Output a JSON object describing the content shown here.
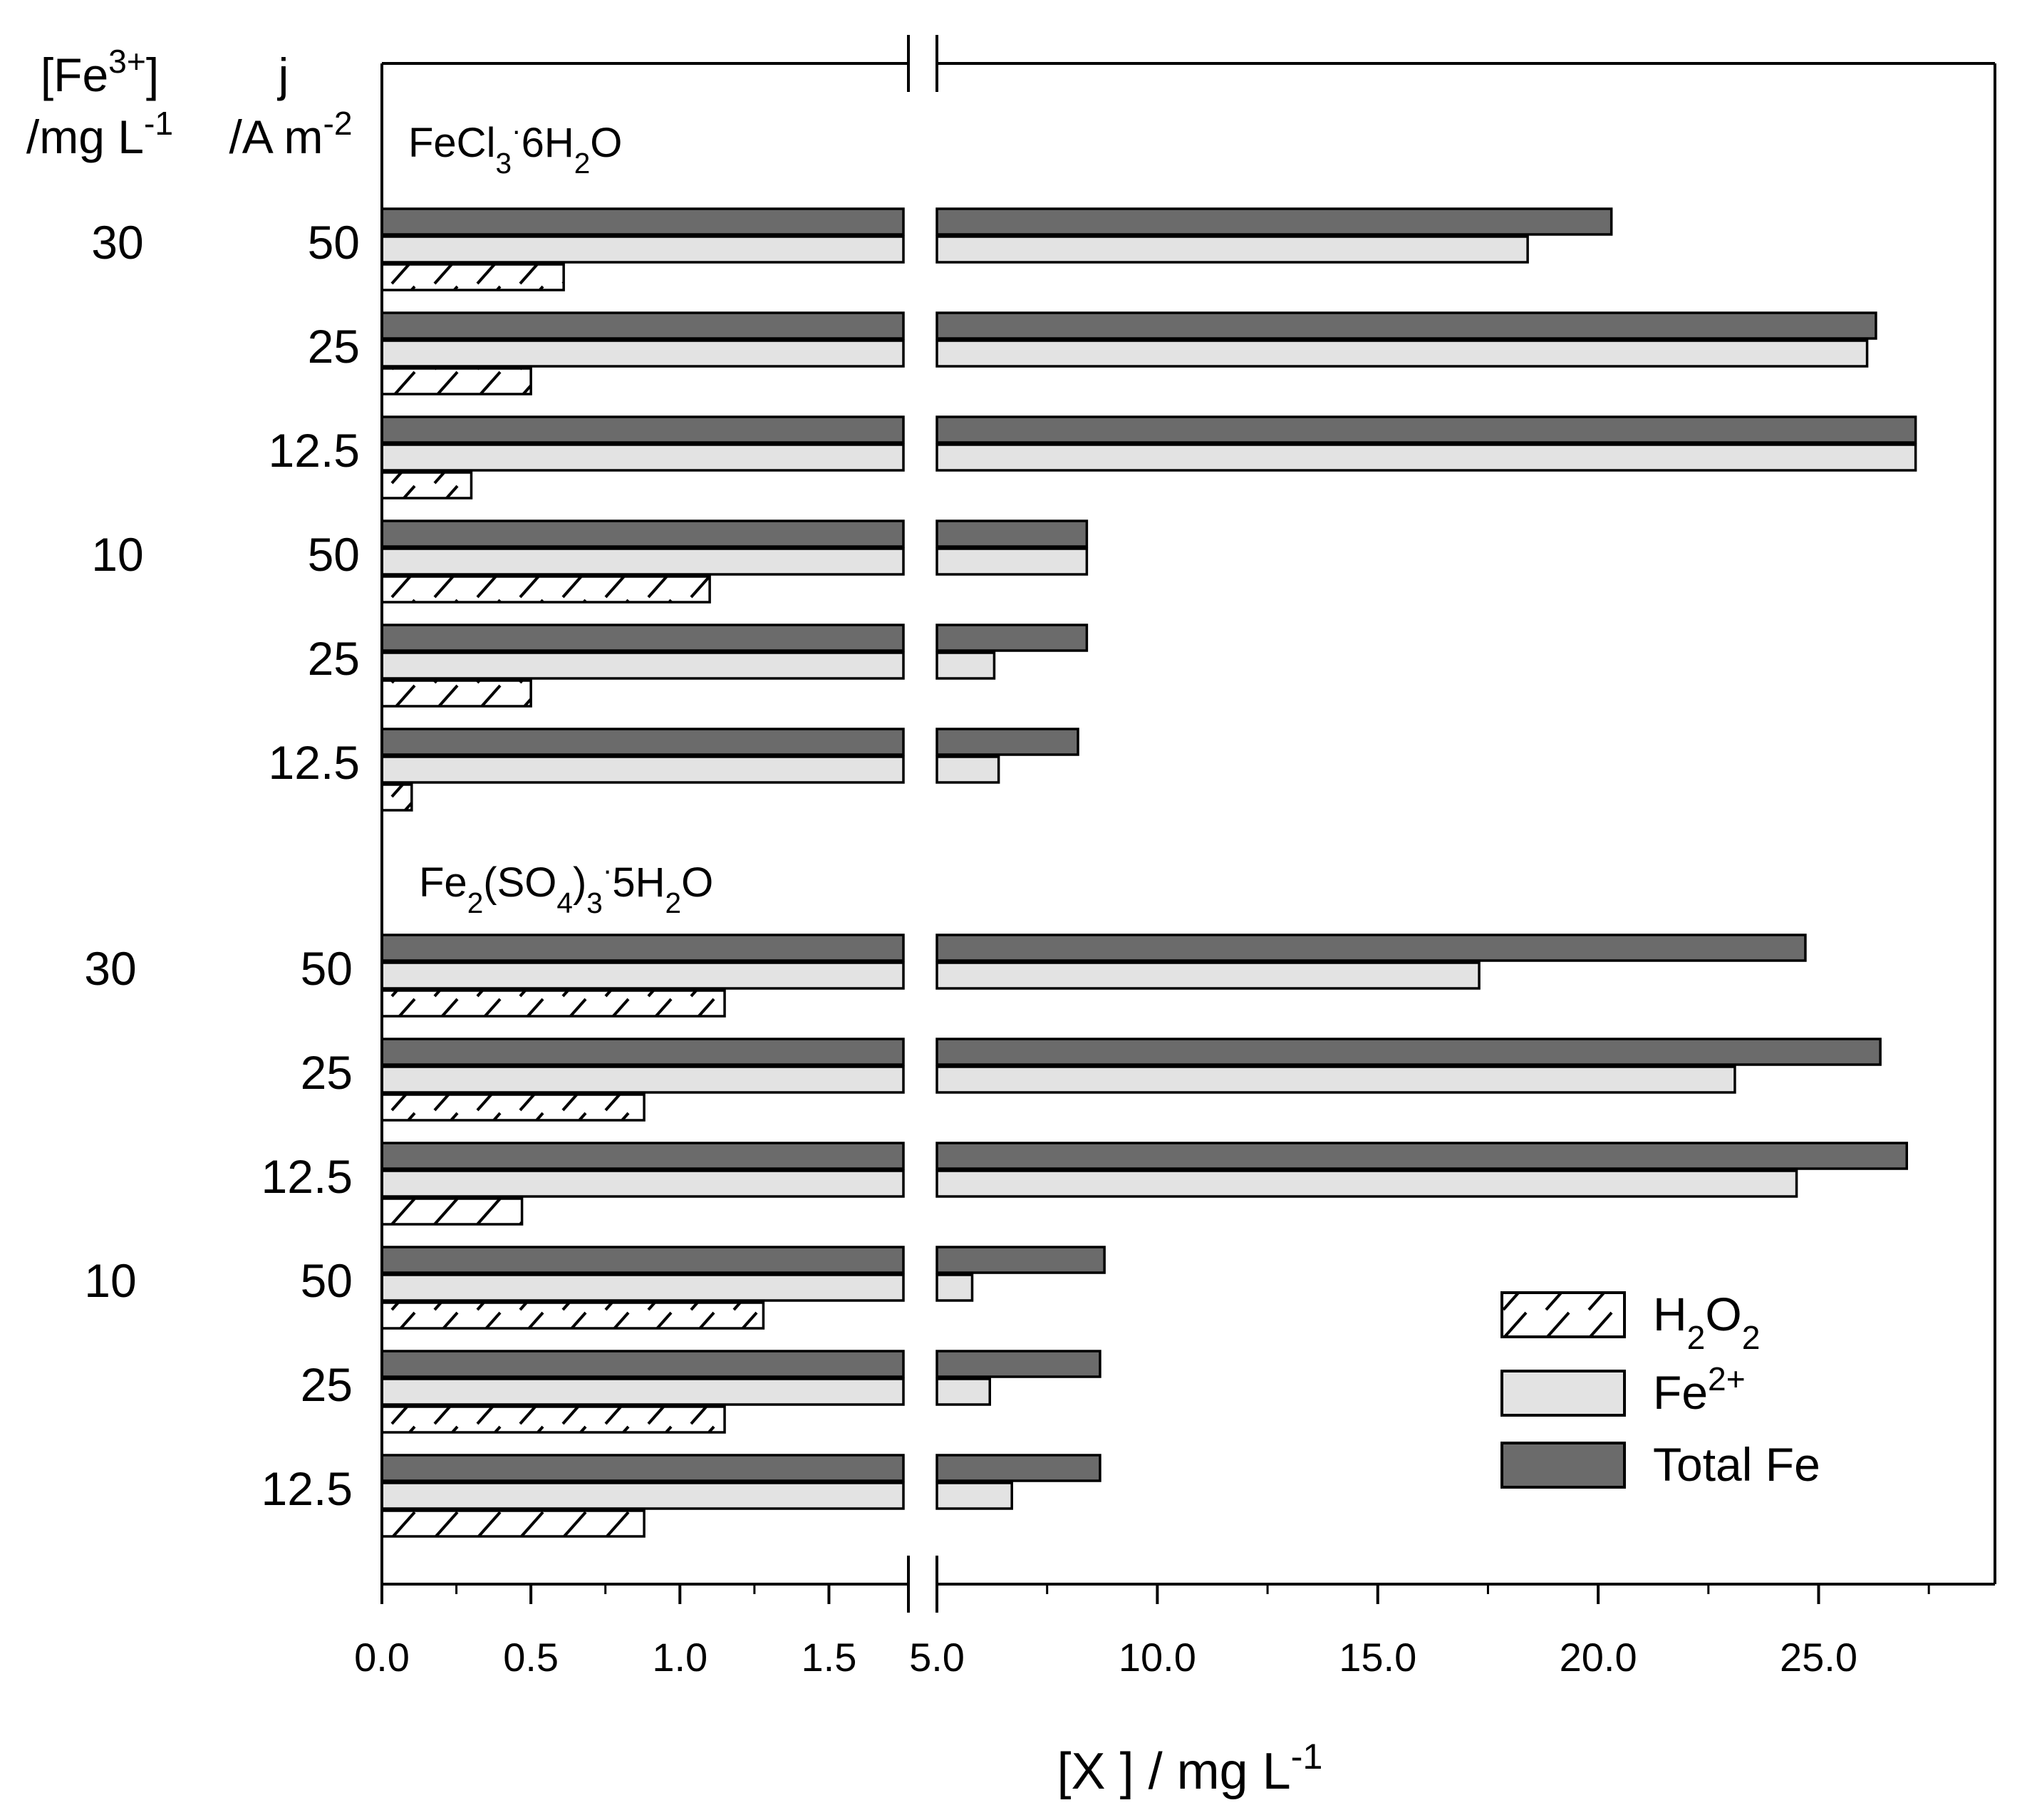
{
  "chart_data": {
    "type": "bar",
    "orientation": "horizontal",
    "axis_break": {
      "from": 1.75,
      "to": 5.0
    },
    "xlabel": {
      "main": "[X ] / mg L",
      "sup": "-1"
    },
    "col_header_fe": {
      "line1_main": "[Fe",
      "line1_sup": "3+",
      "line1_end": "]",
      "line2_main": "/mg L",
      "line2_sup": "-1"
    },
    "col_header_j": {
      "line1": "j",
      "line2_main": "/A m",
      "line2_sup": "-2"
    },
    "x_ticks_left": [
      "0.0",
      "0.5",
      "1.0",
      "1.5"
    ],
    "x_ticks_right": [
      "5.0",
      "10.0",
      "15.0",
      "20.0",
      "25.0"
    ],
    "x_tick_values_left": [
      0,
      0.5,
      1.0,
      1.5
    ],
    "x_tick_values_right": [
      5,
      10,
      15,
      20,
      25
    ],
    "xlim_left": [
      0,
      1.75
    ],
    "xlim_right": [
      5,
      29
    ],
    "series": [
      {
        "name": "H2O2",
        "label_main": "H",
        "label_sub1": "2",
        "label_mid": "O",
        "label_sub2": "2",
        "fill": "#ffffff",
        "hatch": true
      },
      {
        "name": "Fe2+",
        "label_main": "Fe",
        "label_sup": "2+",
        "fill": "#e3e3e3",
        "hatch": false
      },
      {
        "name": "Total Fe",
        "label_main": "Total Fe",
        "fill": "#6b6b6b",
        "hatch": false
      }
    ],
    "groups": [
      {
        "title_parts": [
          {
            "t": "FeCl",
            "s": 0
          },
          {
            "t": "3",
            "s": 1
          },
          {
            "t": "·",
            "s": 2
          },
          {
            "t": "6H",
            "s": 0
          },
          {
            "t": "2",
            "s": 1
          },
          {
            "t": "O",
            "s": 0
          }
        ],
        "rows": [
          {
            "fe": "30",
            "j": "50",
            "h2o2": 0.61,
            "fe2": 18.4,
            "total_fe": 20.3
          },
          {
            "fe": "",
            "j": "25",
            "h2o2": 0.5,
            "fe2": 26.1,
            "total_fe": 26.3
          },
          {
            "fe": "",
            "j": "12.5",
            "h2o2": 0.3,
            "fe2": 27.2,
            "total_fe": 27.2
          },
          {
            "fe": "10",
            "j": "50",
            "h2o2": 1.1,
            "fe2": 8.4,
            "total_fe": 8.4
          },
          {
            "fe": "",
            "j": "25",
            "h2o2": 0.5,
            "fe2": 6.3,
            "total_fe": 8.4
          },
          {
            "fe": "",
            "j": "12.5",
            "h2o2": 0.1,
            "fe2": 6.4,
            "total_fe": 8.2
          }
        ]
      },
      {
        "title_parts": [
          {
            "t": "Fe",
            "s": 0
          },
          {
            "t": "2",
            "s": 1
          },
          {
            "t": "(SO",
            "s": 0
          },
          {
            "t": "4",
            "s": 1
          },
          {
            "t": ")",
            "s": 0
          },
          {
            "t": "3",
            "s": 1
          },
          {
            "t": "·",
            "s": 2
          },
          {
            "t": "5H",
            "s": 0
          },
          {
            "t": "2",
            "s": 1
          },
          {
            "t": "O",
            "s": 0
          }
        ],
        "rows": [
          {
            "fe": "30",
            "j": "50",
            "h2o2": 1.15,
            "fe2": 17.3,
            "total_fe": 24.7
          },
          {
            "fe": "",
            "j": "25",
            "h2o2": 0.88,
            "fe2": 23.1,
            "total_fe": 26.4
          },
          {
            "fe": "",
            "j": "12.5",
            "h2o2": 0.47,
            "fe2": 24.5,
            "total_fe": 27.0
          },
          {
            "fe": "10",
            "j": "50",
            "h2o2": 1.28,
            "fe2": 5.8,
            "total_fe": 8.8
          },
          {
            "fe": "",
            "j": "25",
            "h2o2": 1.15,
            "fe2": 6.2,
            "total_fe": 8.7
          },
          {
            "fe": "",
            "j": "12.5",
            "h2o2": 0.88,
            "fe2": 6.7,
            "total_fe": 8.7
          }
        ]
      }
    ],
    "legend_position": "bottom-right"
  }
}
